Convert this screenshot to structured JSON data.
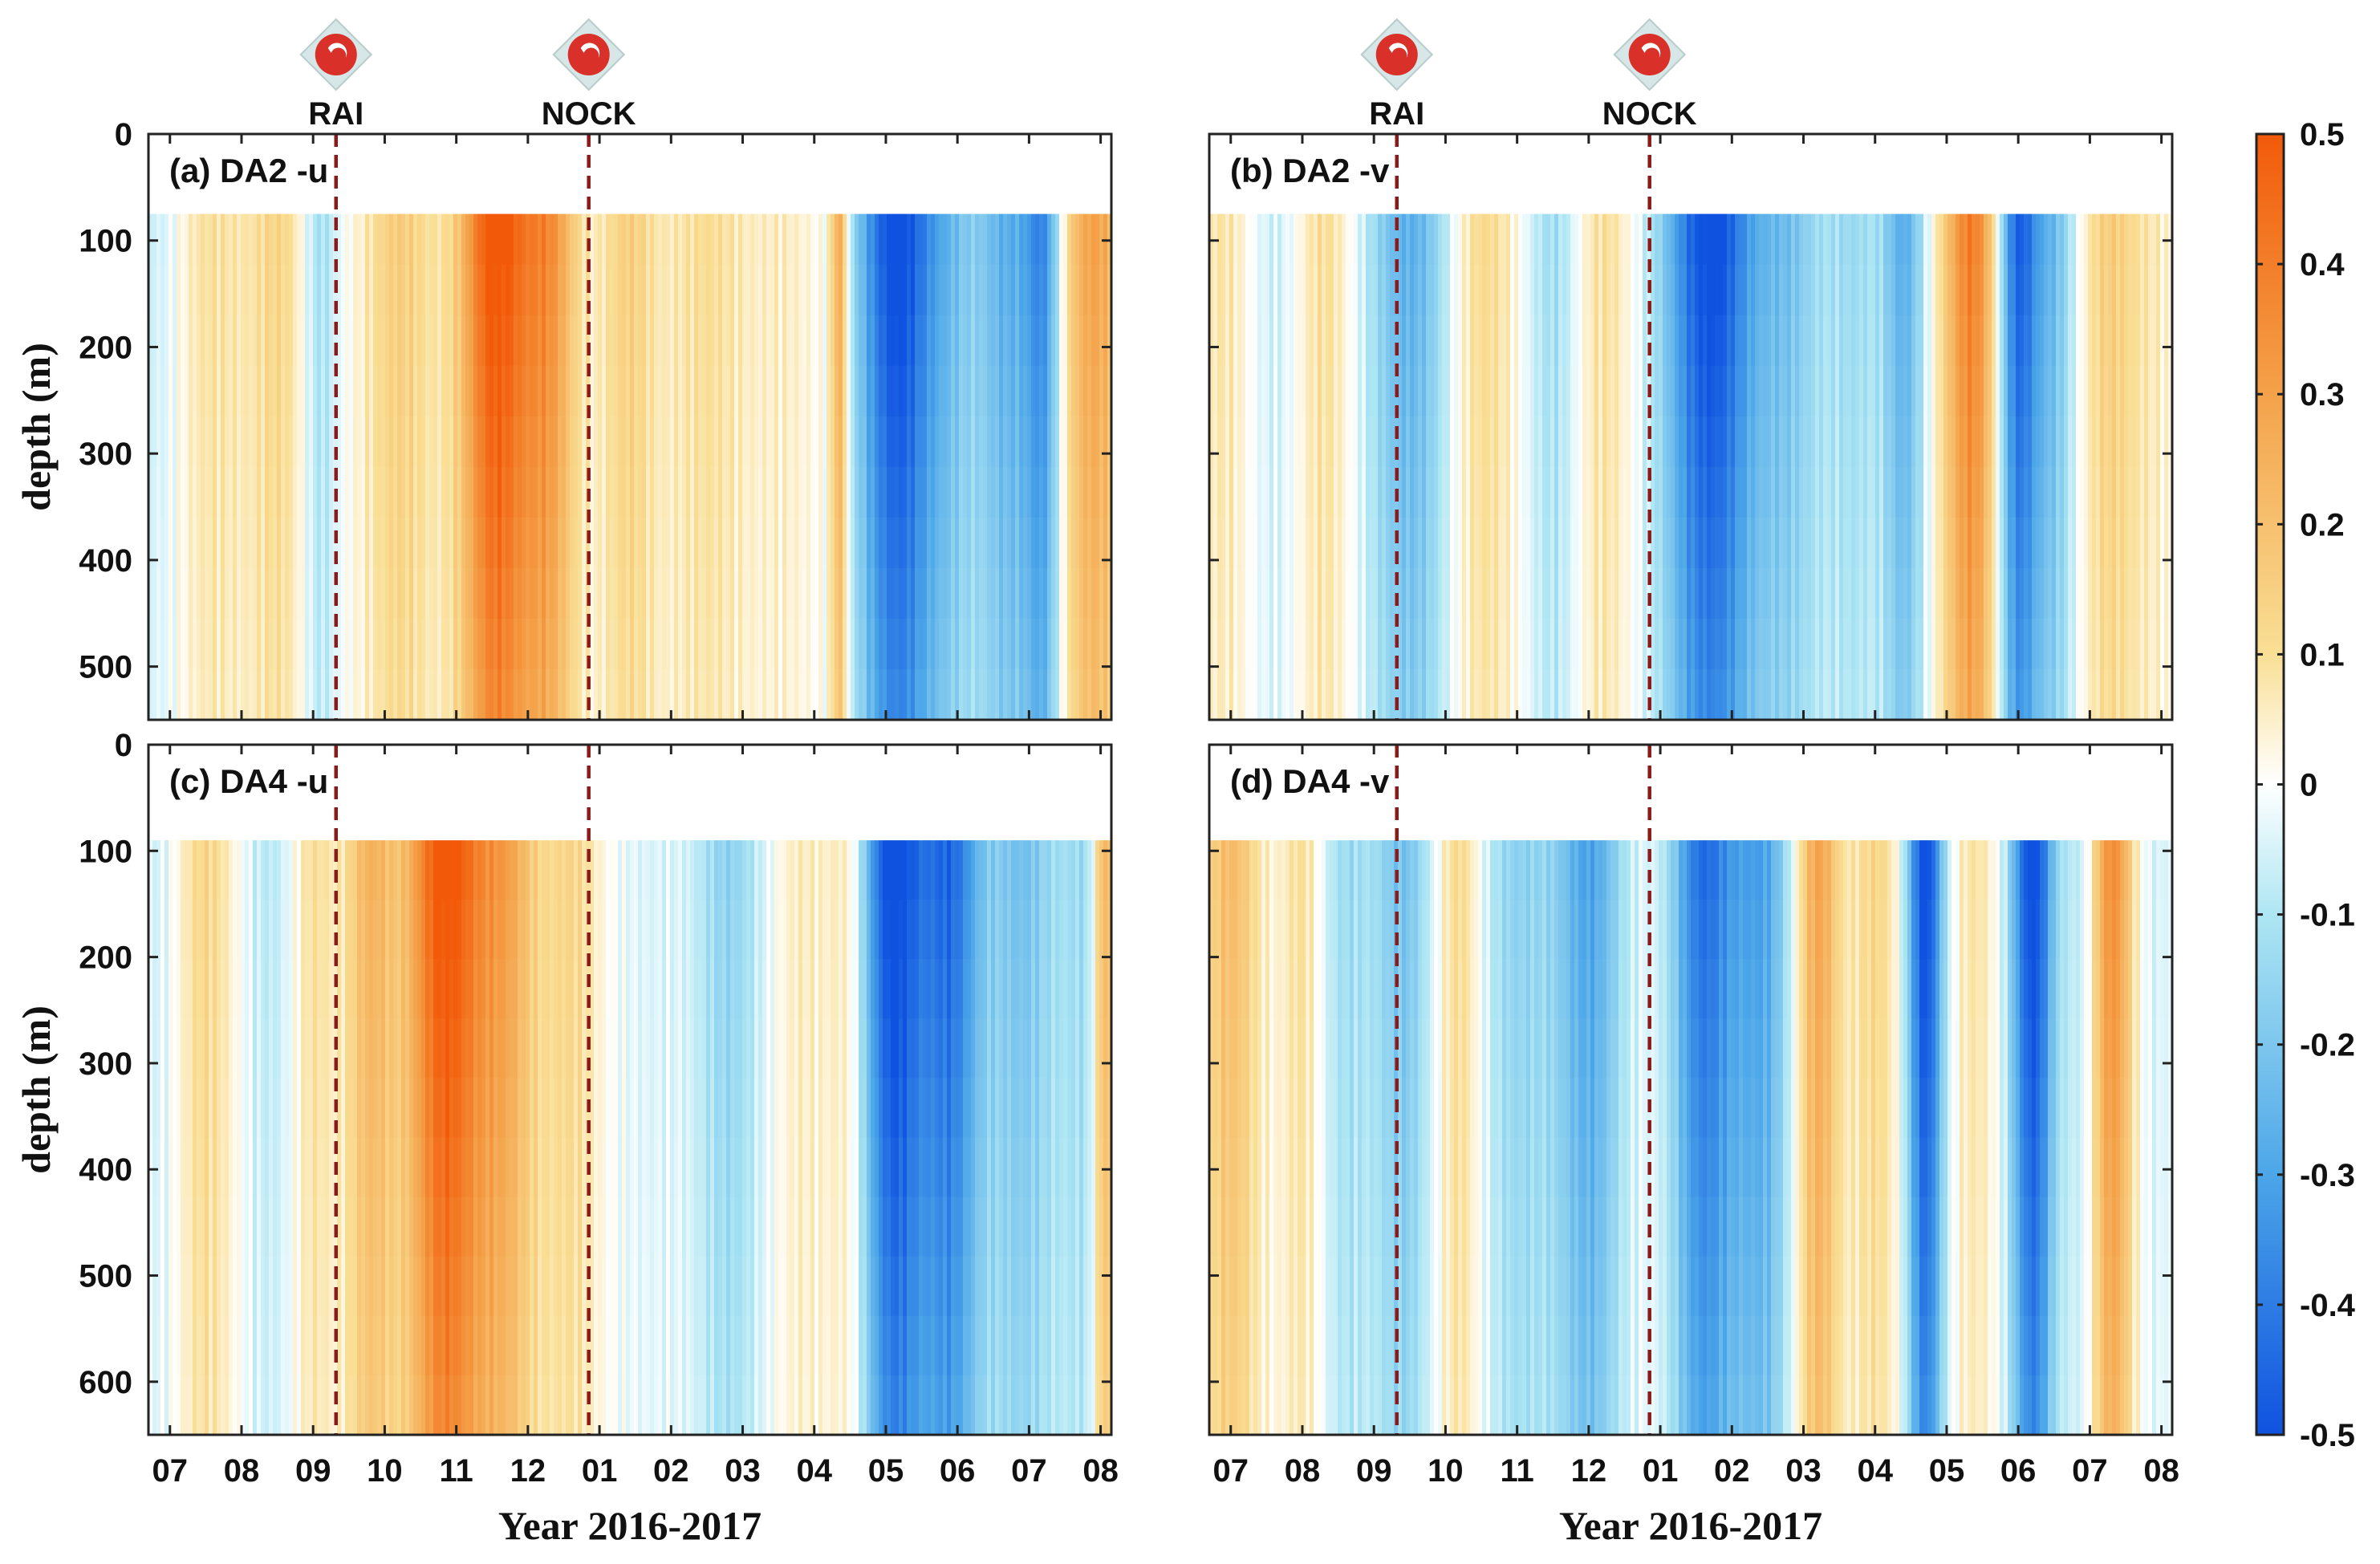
{
  "chart_data": {
    "type": "heatmap",
    "xlabel": "Year 2016-2017",
    "ylabel": "depth (m)",
    "x_ticks": [
      "07",
      "08",
      "09",
      "10",
      "11",
      "12",
      "01",
      "02",
      "03",
      "04",
      "05",
      "06",
      "07",
      "08"
    ],
    "x_tick_months": [
      0,
      1,
      2,
      3,
      4,
      5,
      6,
      7,
      8,
      9,
      10,
      11,
      12,
      13
    ],
    "xlim_months": [
      -0.3,
      13.15
    ],
    "storms": [
      {
        "name": "RAI",
        "month": 2.32
      },
      {
        "name": "NOCK",
        "month": 5.85
      }
    ],
    "colorbar": {
      "range": [
        -0.5,
        0.5
      ],
      "ticks": [
        "0.5",
        "0.4",
        "0.3",
        "0.2",
        "0.1",
        "0",
        "-0.1",
        "-0.2",
        "-0.3",
        "-0.4",
        "-0.5"
      ],
      "tick_values": [
        0.5,
        0.4,
        0.3,
        0.2,
        0.1,
        0,
        -0.1,
        -0.2,
        -0.3,
        -0.4,
        -0.5
      ],
      "negative_color": "#0f52e0",
      "zero_color": "#ffffff",
      "positive_color": "#f25a0a"
    },
    "panels": [
      {
        "title": "(a)  DA2 -u",
        "ylim": [
          0,
          550
        ],
        "data_top": 75,
        "y_ticks": [
          "0",
          "100",
          "200",
          "300",
          "400",
          "500"
        ],
        "y_tick_values": [
          0,
          100,
          200,
          300,
          400,
          500
        ],
        "show_xticks": false,
        "show_ylabel": true,
        "show_storm_labels": true,
        "anomalies": [
          {
            "month": -0.2,
            "value": -0.06,
            "width": 0.35
          },
          {
            "month": 0.6,
            "value": 0.09,
            "width": 0.5
          },
          {
            "month": 1.5,
            "value": 0.12,
            "width": 0.4
          },
          {
            "month": 2.1,
            "value": -0.12,
            "width": 0.25
          },
          {
            "month": 3.2,
            "value": 0.15,
            "width": 0.5
          },
          {
            "month": 4.55,
            "value": 0.5,
            "width": 0.5
          },
          {
            "month": 5.3,
            "value": 0.3,
            "width": 0.4
          },
          {
            "month": 6.4,
            "value": 0.14,
            "width": 0.4
          },
          {
            "month": 7.5,
            "value": 0.1,
            "width": 0.6
          },
          {
            "month": 8.6,
            "value": 0.05,
            "width": 0.5
          },
          {
            "month": 9.35,
            "value": 0.3,
            "width": 0.12
          },
          {
            "month": 10.15,
            "value": -0.5,
            "width": 0.55
          },
          {
            "month": 10.9,
            "value": -0.15,
            "width": 0.4
          },
          {
            "month": 11.7,
            "value": -0.25,
            "width": 0.45
          },
          {
            "month": 12.2,
            "value": -0.3,
            "width": 0.25
          },
          {
            "month": 12.9,
            "value": 0.28,
            "width": 0.45
          }
        ]
      },
      {
        "title": "(b)  DA2 -v",
        "ylim": [
          0,
          550
        ],
        "data_top": 75,
        "y_ticks": [
          "0",
          "100",
          "200",
          "300",
          "400",
          "500"
        ],
        "y_tick_values": [
          0,
          100,
          200,
          300,
          400,
          500
        ],
        "show_xticks": false,
        "show_ylabel": false,
        "show_storm_labels": true,
        "anomalies": [
          {
            "month": -0.1,
            "value": 0.08,
            "width": 0.4
          },
          {
            "month": 0.6,
            "value": -0.06,
            "width": 0.4
          },
          {
            "month": 1.3,
            "value": 0.1,
            "width": 0.4
          },
          {
            "month": 2.5,
            "value": -0.25,
            "width": 0.6
          },
          {
            "month": 3.5,
            "value": 0.12,
            "width": 0.5
          },
          {
            "month": 4.5,
            "value": -0.12,
            "width": 0.4
          },
          {
            "month": 5.2,
            "value": 0.1,
            "width": 0.4
          },
          {
            "month": 6.7,
            "value": -0.5,
            "width": 0.65
          },
          {
            "month": 7.8,
            "value": -0.18,
            "width": 0.5
          },
          {
            "month": 8.7,
            "value": -0.12,
            "width": 0.4
          },
          {
            "month": 9.4,
            "value": -0.25,
            "width": 0.3
          },
          {
            "month": 10.35,
            "value": 0.38,
            "width": 0.4
          },
          {
            "month": 11.0,
            "value": -0.45,
            "width": 0.3
          },
          {
            "month": 11.5,
            "value": -0.2,
            "width": 0.3
          },
          {
            "month": 12.3,
            "value": 0.15,
            "width": 0.4
          },
          {
            "month": 12.9,
            "value": 0.05,
            "width": 0.3
          }
        ]
      },
      {
        "title": "(c)  DA4 -u",
        "ylim": [
          0,
          650
        ],
        "data_top": 90,
        "y_ticks": [
          "0",
          "100",
          "200",
          "300",
          "400",
          "500",
          "600"
        ],
        "y_tick_values": [
          0,
          100,
          200,
          300,
          400,
          500,
          600
        ],
        "show_xticks": true,
        "show_ylabel": true,
        "show_storm_labels": false,
        "anomalies": [
          {
            "month": -0.2,
            "value": -0.05,
            "width": 0.35
          },
          {
            "month": 0.5,
            "value": 0.12,
            "width": 0.4
          },
          {
            "month": 1.4,
            "value": -0.08,
            "width": 0.4
          },
          {
            "month": 2.0,
            "value": 0.1,
            "width": 0.3
          },
          {
            "month": 2.8,
            "value": 0.22,
            "width": 0.35
          },
          {
            "month": 3.85,
            "value": 0.5,
            "width": 0.55
          },
          {
            "month": 4.7,
            "value": 0.25,
            "width": 0.45
          },
          {
            "month": 5.6,
            "value": 0.12,
            "width": 0.4
          },
          {
            "month": 6.7,
            "value": -0.04,
            "width": 0.5
          },
          {
            "month": 7.8,
            "value": -0.15,
            "width": 0.5
          },
          {
            "month": 8.8,
            "value": 0.06,
            "width": 0.4
          },
          {
            "month": 9.5,
            "value": 0.1,
            "width": 0.3
          },
          {
            "month": 10.1,
            "value": -0.5,
            "width": 0.45
          },
          {
            "month": 10.9,
            "value": -0.4,
            "width": 0.45
          },
          {
            "month": 11.9,
            "value": -0.2,
            "width": 0.5
          },
          {
            "month": 12.8,
            "value": -0.12,
            "width": 0.4
          },
          {
            "month": 13.05,
            "value": 0.3,
            "width": 0.15
          }
        ]
      },
      {
        "title": "(d)  DA4 -v",
        "ylim": [
          0,
          650
        ],
        "data_top": 90,
        "y_ticks": [
          "0",
          "100",
          "200",
          "300",
          "400",
          "500",
          "600"
        ],
        "y_tick_values": [
          0,
          100,
          200,
          300,
          400,
          500,
          600
        ],
        "show_xticks": true,
        "show_ylabel": false,
        "show_storm_labels": false,
        "anomalies": [
          {
            "month": 0.0,
            "value": 0.2,
            "width": 0.4
          },
          {
            "month": 1.0,
            "value": 0.1,
            "width": 0.3
          },
          {
            "month": 1.6,
            "value": -0.12,
            "width": 0.4
          },
          {
            "month": 2.4,
            "value": -0.2,
            "width": 0.4
          },
          {
            "month": 3.2,
            "value": 0.12,
            "width": 0.3
          },
          {
            "month": 4.0,
            "value": -0.15,
            "width": 0.5
          },
          {
            "month": 5.0,
            "value": -0.28,
            "width": 0.5
          },
          {
            "month": 6.6,
            "value": -0.4,
            "width": 0.45
          },
          {
            "month": 7.4,
            "value": -0.28,
            "width": 0.45
          },
          {
            "month": 8.2,
            "value": 0.28,
            "width": 0.3
          },
          {
            "month": 9.0,
            "value": 0.12,
            "width": 0.35
          },
          {
            "month": 9.7,
            "value": -0.5,
            "width": 0.25
          },
          {
            "month": 10.4,
            "value": 0.08,
            "width": 0.3
          },
          {
            "month": 11.2,
            "value": -0.5,
            "width": 0.3
          },
          {
            "month": 11.9,
            "value": -0.1,
            "width": 0.3
          },
          {
            "month": 12.3,
            "value": 0.35,
            "width": 0.3
          },
          {
            "month": 12.9,
            "value": -0.05,
            "width": 0.3
          }
        ]
      }
    ]
  }
}
